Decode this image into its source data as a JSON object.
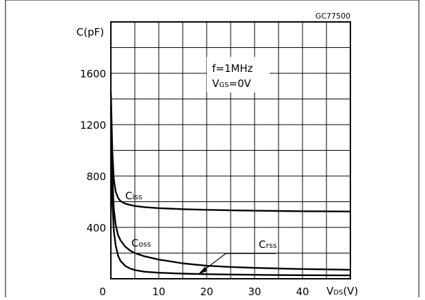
{
  "figure_code": "GC77500",
  "chart_data": {
    "type": "line",
    "ylabel": "C(pF)",
    "xlabel": "VDS(V)",
    "xlabel_main": "V",
    "xlabel_sub": "DS",
    "xlabel_unit": "(V)",
    "x_ticks": [
      0,
      10,
      20,
      30,
      40
    ],
    "y_ticks": [
      400,
      800,
      1200,
      1600
    ],
    "xlim": [
      0,
      50
    ],
    "ylim": [
      0,
      2000
    ],
    "grid": true,
    "annotation_lines": [
      {
        "text": "f=1MHz"
      },
      {
        "text": "VGS=0V",
        "main": "V",
        "sub": "GS",
        "rest": "=0V"
      }
    ],
    "series": [
      {
        "name": "Ciss",
        "label_main": "C",
        "label_sub": "iss",
        "x": [
          0,
          0.3,
          0.6,
          1,
          1.5,
          2,
          3,
          4,
          5,
          7,
          10,
          15,
          20,
          25,
          30,
          35,
          40,
          45,
          50
        ],
        "y": [
          1450,
          1000,
          780,
          680,
          630,
          605,
          585,
          575,
          567,
          558,
          550,
          542,
          537,
          533,
          530,
          528,
          526,
          525,
          524
        ]
      },
      {
        "name": "Coss",
        "label_main": "C",
        "label_sub": "oss",
        "x": [
          0,
          0.3,
          0.6,
          1,
          1.5,
          2,
          3,
          4,
          5,
          7,
          10,
          15,
          20,
          25,
          30,
          35,
          40,
          45,
          50
        ],
        "y": [
          1350,
          820,
          550,
          420,
          340,
          300,
          250,
          220,
          200,
          175,
          150,
          120,
          102,
          92,
          85,
          80,
          76,
          73,
          70
        ]
      },
      {
        "name": "Crss",
        "label_main": "C",
        "label_sub": "rss",
        "x": [
          0,
          0.3,
          0.6,
          1,
          1.5,
          2,
          3,
          4,
          5,
          7,
          10,
          15,
          20,
          25,
          30,
          35,
          40,
          45,
          50
        ],
        "y": [
          1300,
          600,
          380,
          260,
          180,
          140,
          100,
          80,
          68,
          55,
          47,
          40,
          36,
          33,
          31,
          29,
          28,
          27,
          26
        ]
      }
    ]
  }
}
